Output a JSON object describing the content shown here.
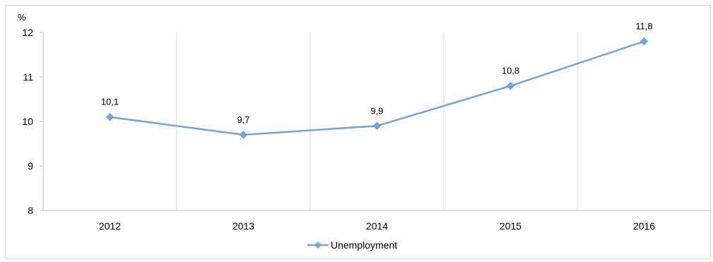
{
  "chart_data": {
    "type": "line",
    "unit_label": "%",
    "categories": [
      "2012",
      "2013",
      "2014",
      "2015",
      "2016"
    ],
    "series": [
      {
        "name": "Unemployment",
        "values": [
          10.1,
          9.7,
          9.9,
          10.8,
          11.8
        ],
        "data_labels": [
          "10,1",
          "9,7",
          "9,9",
          "10,8",
          "11,8"
        ],
        "color": "#6ea6d6",
        "marker": "diamond"
      }
    ],
    "ylim": [
      8,
      12
    ],
    "yticks": [
      8,
      9,
      10,
      11,
      12
    ],
    "ytick_labels": [
      "8",
      "9",
      "10",
      "11",
      "12"
    ],
    "grid": "vertical",
    "legend": "bottom-center",
    "gridline_color": "#d9d9d9",
    "axis_color": "#bfbfbf"
  }
}
